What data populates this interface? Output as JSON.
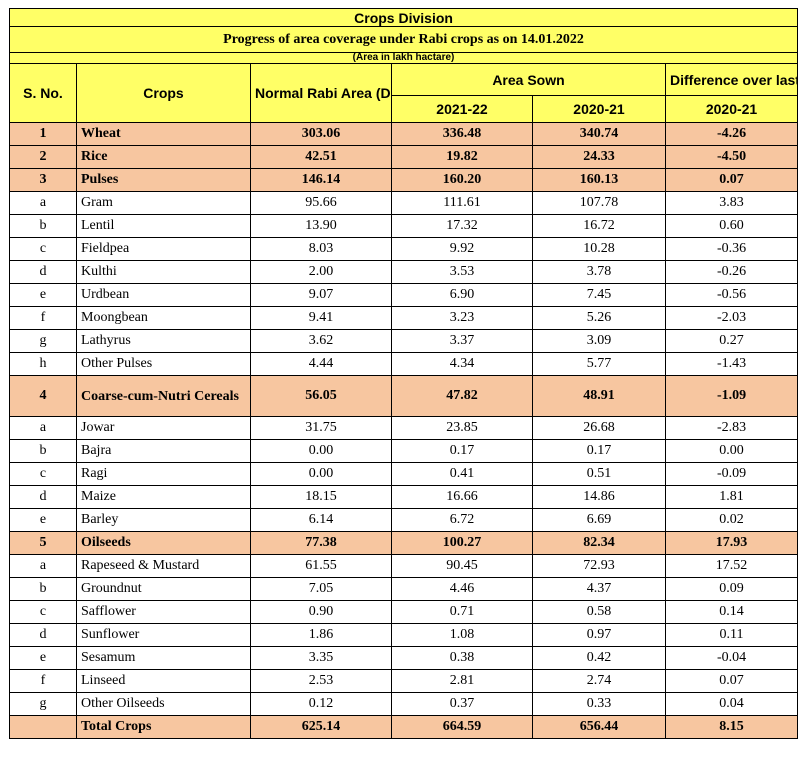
{
  "division_title": "Crops Division",
  "page_title": "Progress of area coverage under Rabi crops as on 14.01.2022",
  "unit_note": "(Area in lakh hactare)",
  "headers": {
    "sno": "S. No.",
    "crops": "Crops",
    "normal": "Normal Rabi Area (DES)",
    "area_sown": "Area Sown",
    "difference": "Difference over last year",
    "year_2021_22": "2021-22",
    "year_2020_21": "2020-21",
    "diff_year": "2020-21"
  },
  "rows": [
    {
      "sno": "1",
      "crop": "Wheat",
      "normal": "303.06",
      "y2122": "336.48",
      "y2021": "340.74",
      "diff": "-4.26"
    },
    {
      "sno": "2",
      "crop": "Rice",
      "normal": "42.51",
      "y2122": "19.82",
      "y2021": "24.33",
      "diff": "-4.50"
    },
    {
      "sno": "3",
      "crop": "Pulses",
      "normal": "146.14",
      "y2122": "160.20",
      "y2021": "160.13",
      "diff": "0.07"
    },
    {
      "sno": "a",
      "crop": "Gram",
      "normal": "95.66",
      "y2122": "111.61",
      "y2021": "107.78",
      "diff": "3.83"
    },
    {
      "sno": "b",
      "crop": "Lentil",
      "normal": "13.90",
      "y2122": "17.32",
      "y2021": "16.72",
      "diff": "0.60"
    },
    {
      "sno": "c",
      "crop": "Fieldpea",
      "normal": "8.03",
      "y2122": "9.92",
      "y2021": "10.28",
      "diff": "-0.36"
    },
    {
      "sno": "d",
      "crop": "Kulthi",
      "normal": "2.00",
      "y2122": "3.53",
      "y2021": "3.78",
      "diff": "-0.26"
    },
    {
      "sno": "e",
      "crop": "Urdbean",
      "normal": "9.07",
      "y2122": "6.90",
      "y2021": "7.45",
      "diff": "-0.56"
    },
    {
      "sno": "f",
      "crop": "Moongbean",
      "normal": "9.41",
      "y2122": "3.23",
      "y2021": "5.26",
      "diff": "-2.03"
    },
    {
      "sno": "g",
      "crop": "Lathyrus",
      "normal": "3.62",
      "y2122": "3.37",
      "y2021": "3.09",
      "diff": "0.27"
    },
    {
      "sno": "h",
      "crop": "Other Pulses",
      "normal": "4.44",
      "y2122": "4.34",
      "y2021": "5.77",
      "diff": "-1.43"
    },
    {
      "sno": "4",
      "crop": "Coarse-cum-Nutri Cereals",
      "normal": "56.05",
      "y2122": "47.82",
      "y2021": "48.91",
      "diff": "-1.09"
    },
    {
      "sno": "a",
      "crop": "Jowar",
      "normal": "31.75",
      "y2122": "23.85",
      "y2021": "26.68",
      "diff": "-2.83"
    },
    {
      "sno": "b",
      "crop": "Bajra",
      "normal": "0.00",
      "y2122": "0.17",
      "y2021": "0.17",
      "diff": "0.00"
    },
    {
      "sno": "c",
      "crop": "Ragi",
      "normal": "0.00",
      "y2122": "0.41",
      "y2021": "0.51",
      "diff": "-0.09"
    },
    {
      "sno": "d",
      "crop": "Maize",
      "normal": "18.15",
      "y2122": "16.66",
      "y2021": "14.86",
      "diff": "1.81"
    },
    {
      "sno": "e",
      "crop": "Barley",
      "normal": "6.14",
      "y2122": "6.72",
      "y2021": "6.69",
      "diff": "0.02"
    },
    {
      "sno": "5",
      "crop": "Oilseeds",
      "normal": "77.38",
      "y2122": "100.27",
      "y2021": "82.34",
      "diff": "17.93"
    },
    {
      "sno": "a",
      "crop": "Rapeseed & Mustard",
      "normal": "61.55",
      "y2122": "90.45",
      "y2021": "72.93",
      "diff": "17.52"
    },
    {
      "sno": "b",
      "crop": "Groundnut",
      "normal": "7.05",
      "y2122": "4.46",
      "y2021": "4.37",
      "diff": "0.09"
    },
    {
      "sno": "c",
      "crop": "Safflower",
      "normal": "0.90",
      "y2122": "0.71",
      "y2021": "0.58",
      "diff": "0.14"
    },
    {
      "sno": "d",
      "crop": "Sunflower",
      "normal": "1.86",
      "y2122": "1.08",
      "y2021": "0.97",
      "diff": "0.11"
    },
    {
      "sno": "e",
      "crop": "Sesamum",
      "normal": "3.35",
      "y2122": "0.38",
      "y2021": "0.42",
      "diff": "-0.04"
    },
    {
      "sno": "f",
      "crop": "Linseed",
      "normal": "2.53",
      "y2122": "2.81",
      "y2021": "2.74",
      "diff": "0.07"
    },
    {
      "sno": "g",
      "crop": "Other Oilseeds",
      "normal": "0.12",
      "y2122": "0.37",
      "y2021": "0.33",
      "diff": "0.04"
    }
  ],
  "total": {
    "sno": "",
    "crop": "Total Crops",
    "normal": "625.14",
    "y2122": "664.59",
    "y2021": "656.44",
    "diff": "8.15"
  },
  "colors": {
    "header_yellow": "#ffff66",
    "highlight_peach": "#f7c6a0"
  }
}
